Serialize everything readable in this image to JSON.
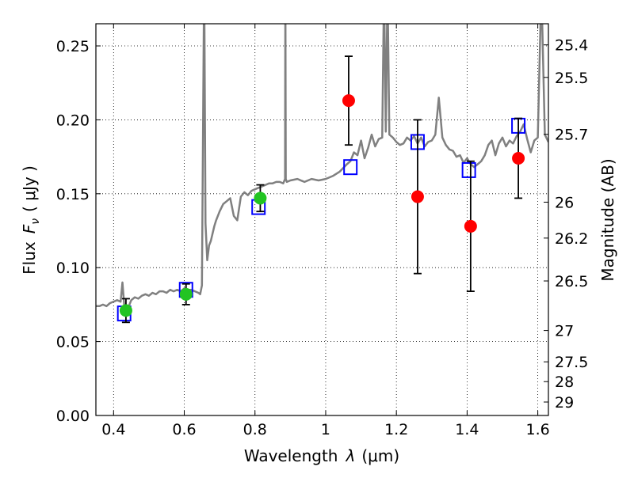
{
  "chart_data": {
    "type": "scatter",
    "title": "",
    "xlabel_text": "Wavelength",
    "xlabel_symbol": "λ",
    "xlabel_unit": "(μm)",
    "ylabel_text": "Flux",
    "ylabel_symbol": "F",
    "ylabel_sub": "ν",
    "ylabel_unit": "( μJy )",
    "y2label": "Magnitude (AB)",
    "xlim": [
      0.35,
      1.63
    ],
    "ylim": [
      0.0,
      0.265
    ],
    "grid": true,
    "x_ticks": [
      0.4,
      0.6,
      0.8,
      1.0,
      1.2,
      1.4,
      1.6
    ],
    "x_tick_labels": [
      "0.4",
      "0.6",
      "0.8",
      "1",
      "1.2",
      "1.4",
      "1.6"
    ],
    "y_ticks": [
      0.0,
      0.05,
      0.1,
      0.15,
      0.2,
      0.25
    ],
    "y_tick_labels": [
      "0.00",
      "0.05",
      "0.10",
      "0.15",
      "0.20",
      "0.25"
    ],
    "y2_ticks": [
      {
        "label": "25.4",
        "flux": 0.2507
      },
      {
        "label": "25.5",
        "flux": 0.2287
      },
      {
        "label": "25.7",
        "flux": 0.1902
      },
      {
        "label": "26",
        "flux": 0.1443
      },
      {
        "label": "26.2",
        "flux": 0.12
      },
      {
        "label": "26.5",
        "flux": 0.091
      },
      {
        "label": "27",
        "flux": 0.0575
      },
      {
        "label": "27.5",
        "flux": 0.0363
      },
      {
        "label": "28",
        "flux": 0.0229
      },
      {
        "label": "29",
        "flux": 0.0091
      }
    ],
    "colors": {
      "model": "#808080",
      "green_points": "#22c422",
      "red_points": "#ff0000",
      "squares": "#0000ff",
      "errorbars": "#000000"
    },
    "series": [
      {
        "marker": "square",
        "x": [
          0.43,
          0.605,
          0.81,
          1.07,
          1.26,
          1.405,
          1.545
        ],
        "y": [
          0.069,
          0.085,
          0.141,
          0.168,
          0.185,
          0.166,
          0.196
        ]
      },
      {
        "marker": "circle-green",
        "x": [
          0.435,
          0.605,
          0.815
        ],
        "y": [
          0.071,
          0.082,
          0.147
        ],
        "yerr": [
          0.008,
          0.007,
          0.009
        ]
      },
      {
        "marker": "circle-red",
        "x": [
          1.065,
          1.26,
          1.41,
          1.545
        ],
        "y": [
          0.213,
          0.148,
          0.128,
          0.174
        ],
        "yerr": [
          0.03,
          0.052,
          0.044,
          0.027
        ]
      }
    ],
    "model_spectrum": {
      "x": [
        0.35,
        0.36,
        0.37,
        0.38,
        0.39,
        0.4,
        0.41,
        0.42,
        0.425,
        0.43,
        0.44,
        0.45,
        0.46,
        0.47,
        0.48,
        0.49,
        0.5,
        0.51,
        0.52,
        0.53,
        0.54,
        0.55,
        0.56,
        0.57,
        0.58,
        0.59,
        0.6,
        0.61,
        0.62,
        0.63,
        0.64,
        0.645,
        0.65,
        0.655,
        0.656,
        0.657,
        0.66,
        0.665,
        0.67,
        0.675,
        0.68,
        0.685,
        0.69,
        0.7,
        0.71,
        0.72,
        0.73,
        0.74,
        0.75,
        0.76,
        0.77,
        0.78,
        0.79,
        0.8,
        0.81,
        0.82,
        0.83,
        0.84,
        0.85,
        0.86,
        0.87,
        0.88,
        0.885,
        0.886,
        0.887,
        0.89,
        0.9,
        0.92,
        0.94,
        0.96,
        0.98,
        1.0,
        1.02,
        1.04,
        1.06,
        1.07,
        1.08,
        1.09,
        1.1,
        1.11,
        1.12,
        1.13,
        1.14,
        1.15,
        1.16,
        1.165,
        1.17,
        1.175,
        1.18,
        1.19,
        1.2,
        1.21,
        1.22,
        1.23,
        1.24,
        1.25,
        1.26,
        1.27,
        1.28,
        1.29,
        1.3,
        1.31,
        1.32,
        1.33,
        1.34,
        1.35,
        1.36,
        1.37,
        1.38,
        1.39,
        1.4,
        1.41,
        1.42,
        1.43,
        1.44,
        1.45,
        1.46,
        1.47,
        1.48,
        1.49,
        1.5,
        1.51,
        1.52,
        1.53,
        1.54,
        1.55,
        1.56,
        1.57,
        1.58,
        1.59,
        1.6,
        1.61,
        1.62,
        1.63
      ],
      "y": [
        0.074,
        0.074,
        0.075,
        0.074,
        0.076,
        0.077,
        0.078,
        0.077,
        0.09,
        0.075,
        0.072,
        0.078,
        0.08,
        0.079,
        0.081,
        0.082,
        0.081,
        0.083,
        0.082,
        0.084,
        0.084,
        0.083,
        0.085,
        0.084,
        0.085,
        0.084,
        0.086,
        0.085,
        0.085,
        0.084,
        0.083,
        0.082,
        0.088,
        0.26,
        0.29,
        0.26,
        0.13,
        0.105,
        0.115,
        0.118,
        0.123,
        0.128,
        0.132,
        0.138,
        0.143,
        0.145,
        0.147,
        0.135,
        0.132,
        0.148,
        0.151,
        0.149,
        0.152,
        0.153,
        0.154,
        0.155,
        0.156,
        0.157,
        0.157,
        0.158,
        0.158,
        0.157,
        0.16,
        0.29,
        0.16,
        0.158,
        0.159,
        0.16,
        0.158,
        0.16,
        0.159,
        0.16,
        0.162,
        0.165,
        0.17,
        0.172,
        0.178,
        0.176,
        0.186,
        0.174,
        0.181,
        0.19,
        0.182,
        0.187,
        0.188,
        0.29,
        0.192,
        0.29,
        0.19,
        0.188,
        0.185,
        0.183,
        0.184,
        0.188,
        0.186,
        0.189,
        0.184,
        0.188,
        0.182,
        0.185,
        0.186,
        0.19,
        0.215,
        0.188,
        0.183,
        0.18,
        0.179,
        0.175,
        0.176,
        0.171,
        0.174,
        0.17,
        0.168,
        0.17,
        0.172,
        0.176,
        0.183,
        0.186,
        0.176,
        0.184,
        0.188,
        0.182,
        0.186,
        0.184,
        0.189,
        0.192,
        0.197,
        0.187,
        0.178,
        0.186,
        0.188,
        0.29,
        0.19,
        0.185
      ]
    }
  }
}
